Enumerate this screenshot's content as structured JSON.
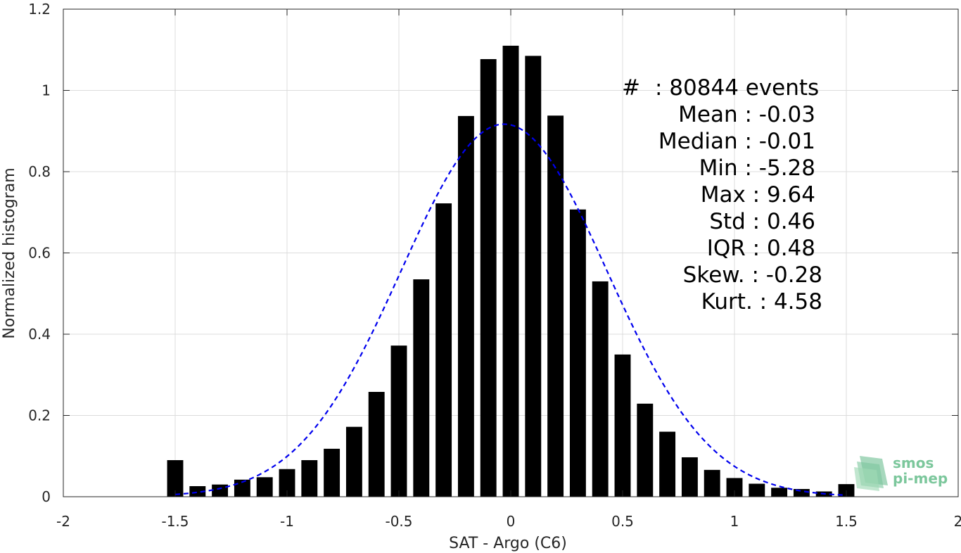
{
  "chart_data": {
    "type": "bar",
    "xlabel": "SAT - Argo (C6)",
    "ylabel": "Normalized histogram",
    "xlim": [
      -2,
      2
    ],
    "ylim": [
      0,
      1.2
    ],
    "xticks": [
      "-2",
      "-1.5",
      "-1",
      "-0.5",
      "0",
      "0.5",
      "1",
      "1.5",
      "2"
    ],
    "yticks": [
      "0",
      "0.2",
      "0.4",
      "0.6",
      "0.8",
      "1",
      "1.2"
    ],
    "grid": true,
    "bar_color": "#000000",
    "fit_color": "#0000ee",
    "bars": {
      "x": [
        -1.5,
        -1.4,
        -1.3,
        -1.2,
        -1.1,
        -1.0,
        -0.9,
        -0.8,
        -0.7,
        -0.6,
        -0.5,
        -0.4,
        -0.3,
        -0.2,
        -0.1,
        0.0,
        0.1,
        0.2,
        0.3,
        0.4,
        0.5,
        0.6,
        0.7,
        0.8,
        0.9,
        1.0,
        1.1,
        1.2,
        1.3,
        1.4,
        1.5
      ],
      "values": [
        0.09,
        0.026,
        0.03,
        0.042,
        0.048,
        0.068,
        0.09,
        0.118,
        0.172,
        0.258,
        0.372,
        0.535,
        0.722,
        0.937,
        1.077,
        1.11,
        1.085,
        0.938,
        0.707,
        0.53,
        0.35,
        0.229,
        0.16,
        0.097,
        0.066,
        0.046,
        0.032,
        0.022,
        0.019,
        0.013,
        0.031
      ]
    },
    "fit_curve": {
      "type": "gaussian",
      "mean": -0.03,
      "std": 0.46,
      "peak": 0.917,
      "x_range": [
        -1.5,
        1.5
      ]
    },
    "stats": {
      "events_label": "#",
      "events_text": ": 80844 events",
      "lines": [
        "Mean : -0.03",
        "Median : -0.01",
        "Min : -5.28",
        "Max : 9.64",
        "Std : 0.46",
        "IQR : 0.48",
        "Skew. : -0.28",
        "Kurt. : 4.58"
      ]
    },
    "logo": {
      "line1": "smos",
      "line2": "pi-mep",
      "color": "#7cc79c"
    }
  }
}
